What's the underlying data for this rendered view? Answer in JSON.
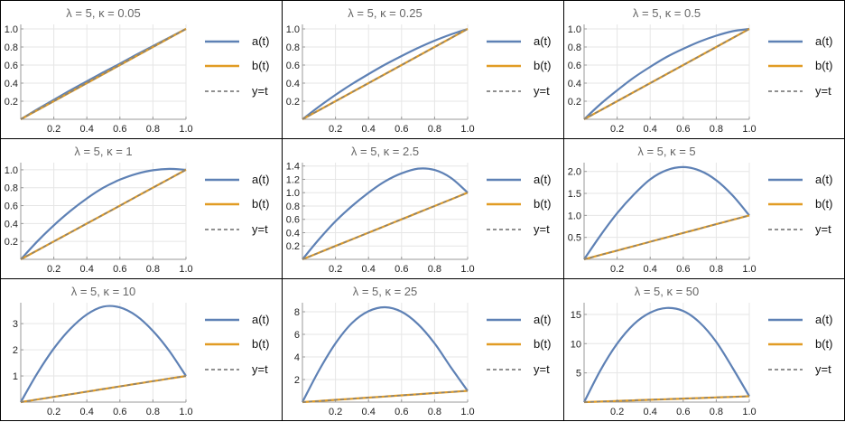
{
  "legend": [
    "a(t)",
    "b(t)",
    "y=t"
  ],
  "colors": {
    "a": "#5E81B5",
    "b": "#E19C24",
    "y": "#808080",
    "grid": "#e6e6e6",
    "axis": "#999999"
  },
  "x_ticks": [
    "0.2",
    "0.4",
    "0.6",
    "0.8",
    "1.0"
  ],
  "chart_data": [
    {
      "type": "line",
      "title": "λ = 5, κ = 0.05",
      "xlim": [
        0,
        1
      ],
      "ylim": [
        0,
        1.05
      ],
      "x": [
        0,
        0.1,
        0.2,
        0.3,
        0.4,
        0.5,
        0.6,
        0.7,
        0.8,
        0.9,
        1.0
      ],
      "series": [
        {
          "name": "a(t)",
          "values": [
            0,
            0.11,
            0.215,
            0.32,
            0.42,
            0.52,
            0.615,
            0.715,
            0.81,
            0.905,
            1.0
          ]
        },
        {
          "name": "b(t)",
          "values": [
            0,
            0.1,
            0.2,
            0.3,
            0.4,
            0.5,
            0.6,
            0.7,
            0.8,
            0.9,
            1.0
          ]
        },
        {
          "name": "y=t",
          "values": [
            0,
            0.1,
            0.2,
            0.3,
            0.4,
            0.5,
            0.6,
            0.7,
            0.8,
            0.9,
            1.0
          ]
        }
      ],
      "yticks": [
        "0.2",
        "0.4",
        "0.6",
        "0.8",
        "1.0"
      ],
      "ytick_values": [
        0.2,
        0.4,
        0.6,
        0.8,
        1.0
      ]
    },
    {
      "type": "line",
      "title": "λ = 5, κ = 0.25",
      "xlim": [
        0,
        1
      ],
      "ylim": [
        0,
        1.05
      ],
      "x": [
        0,
        0.1,
        0.2,
        0.3,
        0.4,
        0.5,
        0.6,
        0.7,
        0.8,
        0.9,
        1.0
      ],
      "series": [
        {
          "name": "a(t)",
          "values": [
            0,
            0.14,
            0.27,
            0.39,
            0.5,
            0.605,
            0.7,
            0.79,
            0.87,
            0.94,
            1.0
          ]
        },
        {
          "name": "b(t)",
          "values": [
            0,
            0.1,
            0.2,
            0.3,
            0.4,
            0.5,
            0.6,
            0.7,
            0.8,
            0.9,
            1.0
          ]
        },
        {
          "name": "y=t",
          "values": [
            0,
            0.1,
            0.2,
            0.3,
            0.4,
            0.5,
            0.6,
            0.7,
            0.8,
            0.9,
            1.0
          ]
        }
      ],
      "yticks": [
        "0.2",
        "0.4",
        "0.6",
        "0.8",
        "1.0"
      ],
      "ytick_values": [
        0.2,
        0.4,
        0.6,
        0.8,
        1.0
      ]
    },
    {
      "type": "line",
      "title": "λ = 5, κ = 0.5",
      "xlim": [
        0,
        1
      ],
      "ylim": [
        0,
        1.05
      ],
      "x": [
        0,
        0.1,
        0.2,
        0.3,
        0.4,
        0.5,
        0.6,
        0.7,
        0.8,
        0.9,
        1.0
      ],
      "series": [
        {
          "name": "a(t)",
          "values": [
            0,
            0.17,
            0.32,
            0.46,
            0.58,
            0.69,
            0.78,
            0.86,
            0.925,
            0.975,
            1.0
          ]
        },
        {
          "name": "b(t)",
          "values": [
            0,
            0.1,
            0.2,
            0.3,
            0.4,
            0.5,
            0.6,
            0.7,
            0.8,
            0.9,
            1.0
          ]
        },
        {
          "name": "y=t",
          "values": [
            0,
            0.1,
            0.2,
            0.3,
            0.4,
            0.5,
            0.6,
            0.7,
            0.8,
            0.9,
            1.0
          ]
        }
      ],
      "yticks": [
        "0.2",
        "0.4",
        "0.6",
        "0.8",
        "1.0"
      ],
      "ytick_values": [
        0.2,
        0.4,
        0.6,
        0.8,
        1.0
      ]
    },
    {
      "type": "line",
      "title": "λ = 5, κ = 1",
      "xlim": [
        0,
        1
      ],
      "ylim": [
        0,
        1.08
      ],
      "x": [
        0,
        0.1,
        0.2,
        0.3,
        0.4,
        0.5,
        0.6,
        0.7,
        0.8,
        0.9,
        1.0
      ],
      "series": [
        {
          "name": "a(t)",
          "values": [
            0,
            0.2,
            0.38,
            0.54,
            0.68,
            0.8,
            0.89,
            0.955,
            0.995,
            1.01,
            1.0
          ]
        },
        {
          "name": "b(t)",
          "values": [
            0,
            0.1,
            0.2,
            0.3,
            0.4,
            0.5,
            0.6,
            0.7,
            0.8,
            0.9,
            1.0
          ]
        },
        {
          "name": "y=t",
          "values": [
            0,
            0.1,
            0.2,
            0.3,
            0.4,
            0.5,
            0.6,
            0.7,
            0.8,
            0.9,
            1.0
          ]
        }
      ],
      "yticks": [
        "0.2",
        "0.4",
        "0.6",
        "0.8",
        "1.0"
      ],
      "ytick_values": [
        0.2,
        0.4,
        0.6,
        0.8,
        1.0
      ]
    },
    {
      "type": "line",
      "title": "λ = 5, κ = 2.5",
      "xlim": [
        0,
        1
      ],
      "ylim": [
        0,
        1.45
      ],
      "x": [
        0,
        0.1,
        0.2,
        0.3,
        0.4,
        0.5,
        0.6,
        0.7,
        0.8,
        0.9,
        1.0
      ],
      "series": [
        {
          "name": "a(t)",
          "values": [
            0,
            0.3,
            0.57,
            0.8,
            1.0,
            1.17,
            1.29,
            1.36,
            1.34,
            1.22,
            1.0
          ]
        },
        {
          "name": "b(t)",
          "values": [
            0,
            0.1,
            0.2,
            0.3,
            0.4,
            0.5,
            0.6,
            0.7,
            0.8,
            0.9,
            1.0
          ]
        },
        {
          "name": "y=t",
          "values": [
            0,
            0.1,
            0.2,
            0.3,
            0.4,
            0.5,
            0.6,
            0.7,
            0.8,
            0.9,
            1.0
          ]
        }
      ],
      "yticks": [
        "0.2",
        "0.4",
        "0.6",
        "0.8",
        "1.0",
        "1.2",
        "1.4"
      ],
      "ytick_values": [
        0.2,
        0.4,
        0.6,
        0.8,
        1.0,
        1.2,
        1.4
      ]
    },
    {
      "type": "line",
      "title": "λ = 5, κ = 5",
      "xlim": [
        0,
        1
      ],
      "ylim": [
        0,
        2.2
      ],
      "x": [
        0,
        0.1,
        0.2,
        0.3,
        0.4,
        0.5,
        0.6,
        0.7,
        0.8,
        0.9,
        1.0
      ],
      "series": [
        {
          "name": "a(t)",
          "values": [
            0,
            0.55,
            1.05,
            1.47,
            1.82,
            2.03,
            2.1,
            2.02,
            1.8,
            1.45,
            1.0
          ]
        },
        {
          "name": "b(t)",
          "values": [
            0,
            0.1,
            0.2,
            0.3,
            0.4,
            0.5,
            0.6,
            0.7,
            0.8,
            0.9,
            1.0
          ]
        },
        {
          "name": "y=t",
          "values": [
            0,
            0.1,
            0.2,
            0.3,
            0.4,
            0.5,
            0.6,
            0.7,
            0.8,
            0.9,
            1.0
          ]
        }
      ],
      "yticks": [
        "0.5",
        "1.0",
        "1.5",
        "2.0"
      ],
      "ytick_values": [
        0.5,
        1.0,
        1.5,
        2.0
      ]
    },
    {
      "type": "line",
      "title": "λ = 5, κ = 10",
      "xlim": [
        0,
        1
      ],
      "ylim": [
        0,
        3.8
      ],
      "x": [
        0,
        0.1,
        0.2,
        0.3,
        0.4,
        0.5,
        0.6,
        0.7,
        0.8,
        0.9,
        1.0
      ],
      "series": [
        {
          "name": "a(t)",
          "values": [
            0,
            1.1,
            2.05,
            2.8,
            3.35,
            3.65,
            3.62,
            3.3,
            2.72,
            1.95,
            1.0
          ]
        },
        {
          "name": "b(t)",
          "values": [
            0,
            0.1,
            0.2,
            0.3,
            0.4,
            0.5,
            0.6,
            0.7,
            0.8,
            0.9,
            1.0
          ]
        },
        {
          "name": "y=t",
          "values": [
            0,
            0.1,
            0.2,
            0.3,
            0.4,
            0.5,
            0.6,
            0.7,
            0.8,
            0.9,
            1.0
          ]
        }
      ],
      "yticks": [
        "1",
        "2",
        "3"
      ],
      "ytick_values": [
        1,
        2,
        3
      ]
    },
    {
      "type": "line",
      "title": "λ = 5, κ = 25",
      "xlim": [
        0,
        1
      ],
      "ylim": [
        0,
        8.8
      ],
      "x": [
        0,
        0.1,
        0.2,
        0.3,
        0.4,
        0.5,
        0.6,
        0.7,
        0.8,
        0.9,
        1.0
      ],
      "series": [
        {
          "name": "a(t)",
          "values": [
            0,
            2.8,
            5.2,
            7.0,
            8.05,
            8.4,
            8.0,
            6.9,
            5.2,
            3.05,
            1.0
          ]
        },
        {
          "name": "b(t)",
          "values": [
            0,
            0.1,
            0.2,
            0.3,
            0.4,
            0.5,
            0.6,
            0.7,
            0.8,
            0.9,
            1.0
          ]
        },
        {
          "name": "y=t",
          "values": [
            0,
            0.1,
            0.2,
            0.3,
            0.4,
            0.5,
            0.6,
            0.7,
            0.8,
            0.9,
            1.0
          ]
        }
      ],
      "yticks": [
        "2",
        "4",
        "6",
        "8"
      ],
      "ytick_values": [
        2,
        4,
        6,
        8
      ]
    },
    {
      "type": "line",
      "title": "λ = 5, κ = 50",
      "xlim": [
        0,
        1
      ],
      "ylim": [
        0,
        17
      ],
      "x": [
        0,
        0.1,
        0.2,
        0.3,
        0.4,
        0.5,
        0.6,
        0.7,
        0.8,
        0.9,
        1.0
      ],
      "series": [
        {
          "name": "a(t)",
          "values": [
            0,
            5.5,
            10.0,
            13.3,
            15.3,
            16.1,
            15.6,
            13.6,
            10.3,
            5.8,
            1.0
          ]
        },
        {
          "name": "b(t)",
          "values": [
            0,
            0.1,
            0.2,
            0.3,
            0.4,
            0.5,
            0.6,
            0.7,
            0.8,
            0.9,
            1.0
          ]
        },
        {
          "name": "y=t",
          "values": [
            0,
            0.1,
            0.2,
            0.3,
            0.4,
            0.5,
            0.6,
            0.7,
            0.8,
            0.9,
            1.0
          ]
        }
      ],
      "yticks": [
        "5",
        "10",
        "15"
      ],
      "ytick_values": [
        5,
        10,
        15
      ]
    }
  ]
}
